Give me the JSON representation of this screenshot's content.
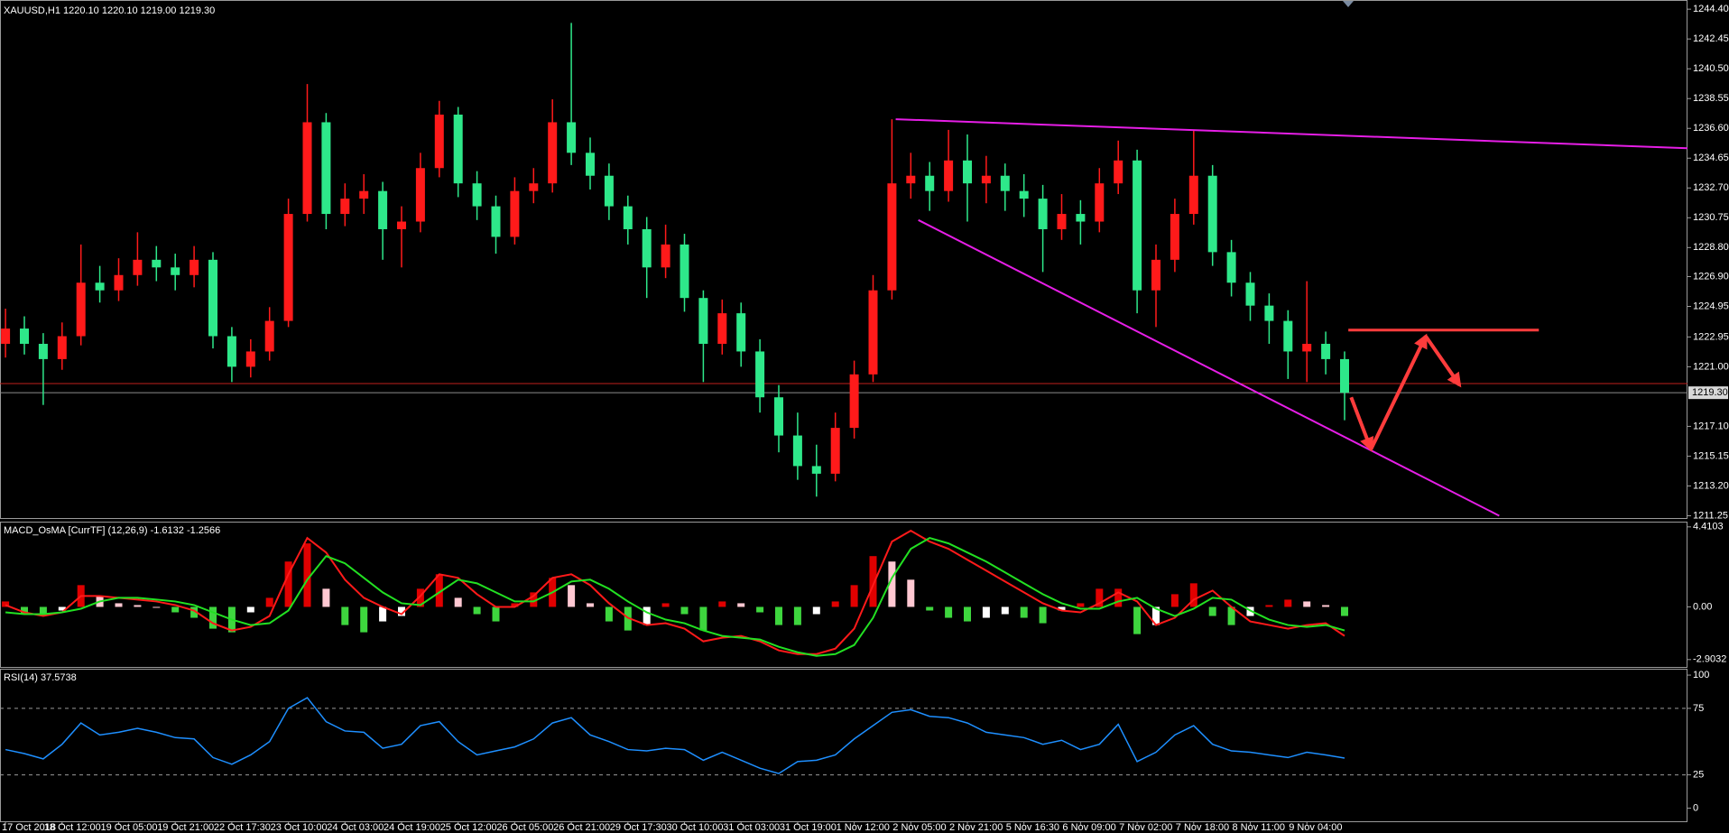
{
  "chart_data": [
    {
      "type": "candlestick",
      "title": "XAUUSD,H1  1220.10 1220.10 1219.00 1219.30",
      "categories": [
        "17 Oct 2018",
        null,
        null,
        "18 Oct 12:00",
        null,
        null,
        "19 Oct 05:00",
        null,
        null,
        "19 Oct 21:00",
        null,
        null,
        "22 Oct 17:30",
        null,
        null,
        "23 Oct 10:00",
        null,
        null,
        "24 Oct 03:00",
        null,
        null,
        "24 Oct 19:00",
        null,
        null,
        "25 Oct 12:00",
        null,
        null,
        "26 Oct 05:00",
        null,
        null,
        "26 Oct 21:00",
        null,
        null,
        "29 Oct 17:30",
        null,
        null,
        "30 Oct 10:00",
        null,
        null,
        "31 Oct 03:00",
        null,
        null,
        "31 Oct 19:00",
        null,
        null,
        "1 Nov 12:00",
        null,
        null,
        "2 Nov 05:00",
        null,
        null,
        "2 Nov 21:00",
        null,
        null,
        "5 Nov 16:30",
        null,
        null,
        "6 Nov 09:00",
        null,
        null,
        "7 Nov 02:00",
        null,
        null,
        "7 Nov 18:00",
        null,
        null,
        "8 Nov 11:00",
        null,
        null,
        "9 Nov 04:00",
        null,
        null
      ],
      "open": [
        1222.5,
        1223.5,
        1222.5,
        1221.5,
        1223.0,
        1226.5,
        1226.0,
        1227.0,
        1228.0,
        1227.5,
        1227.0,
        1228.0,
        1223.0,
        1221.0,
        1222.0,
        1224.0,
        1231.0,
        1237.0,
        1231.0,
        1232.0,
        1232.5,
        1230.0,
        1230.5,
        1234.0,
        1237.5,
        1233.0,
        1231.5,
        1229.5,
        1232.5,
        1233.0,
        1237.0,
        1235.0,
        1233.5,
        1231.5,
        1230.0,
        1227.5,
        1229.0,
        1225.5,
        1222.5,
        1224.5,
        1222.0,
        1219.0,
        1216.5,
        1214.5,
        1214.0,
        1217.0,
        1220.5,
        1226.0,
        1233.0,
        1233.5,
        1232.5,
        1234.5,
        1233.0,
        1233.5,
        1232.5,
        1232.0,
        1230.0,
        1231.0,
        1230.5,
        1233.0,
        1234.5,
        1226.0,
        1228.0,
        1231.0,
        1233.5,
        1228.5,
        1226.5,
        1225.0,
        1224.0,
        1222.0,
        1222.5,
        1221.5
      ],
      "high": [
        1224.8,
        1224.3,
        1223.2,
        1223.9,
        1229.0,
        1227.6,
        1228.1,
        1229.8,
        1228.9,
        1228.4,
        1228.9,
        1228.5,
        1223.6,
        1222.8,
        1224.9,
        1232.0,
        1239.5,
        1237.6,
        1233.0,
        1233.6,
        1233.1,
        1231.5,
        1235.0,
        1238.4,
        1238.0,
        1233.8,
        1232.2,
        1233.4,
        1234.0,
        1238.5,
        1243.5,
        1236.0,
        1234.3,
        1232.2,
        1230.8,
        1230.3,
        1229.7,
        1226.0,
        1225.4,
        1225.2,
        1222.8,
        1219.8,
        1218.0,
        1215.9,
        1218.0,
        1221.4,
        1227.0,
        1237.2,
        1235.0,
        1234.4,
        1236.5,
        1236.2,
        1234.8,
        1234.3,
        1233.6,
        1232.9,
        1232.3,
        1231.9,
        1234.0,
        1235.8,
        1235.2,
        1229.0,
        1232.0,
        1236.5,
        1234.2,
        1229.3,
        1227.2,
        1225.8,
        1224.7,
        1226.6,
        1223.3,
        1222.0
      ],
      "low": [
        1221.6,
        1221.8,
        1218.5,
        1220.8,
        1222.4,
        1225.2,
        1225.3,
        1226.3,
        1226.6,
        1226.0,
        1226.2,
        1222.2,
        1220.0,
        1220.3,
        1221.4,
        1223.6,
        1230.5,
        1230.0,
        1230.2,
        1231.0,
        1228.0,
        1227.5,
        1229.8,
        1233.4,
        1232.1,
        1230.6,
        1228.4,
        1229.0,
        1231.7,
        1232.4,
        1234.2,
        1232.6,
        1230.6,
        1229.0,
        1225.5,
        1226.8,
        1224.6,
        1220.0,
        1221.8,
        1221.0,
        1218.0,
        1215.4,
        1213.6,
        1212.5,
        1213.5,
        1216.3,
        1220.0,
        1225.4,
        1232.0,
        1231.2,
        1231.8,
        1230.5,
        1231.7,
        1231.2,
        1230.8,
        1227.2,
        1229.3,
        1229.0,
        1229.8,
        1232.3,
        1224.5,
        1223.6,
        1227.2,
        1230.3,
        1227.6,
        1225.6,
        1224.0,
        1222.5,
        1220.2,
        1220.0,
        1220.5,
        1217.5
      ],
      "close": [
        1223.5,
        1222.5,
        1221.5,
        1223.0,
        1226.5,
        1226.0,
        1227.0,
        1228.0,
        1227.5,
        1227.0,
        1228.0,
        1223.0,
        1221.0,
        1222.0,
        1224.0,
        1231.0,
        1237.0,
        1231.0,
        1232.0,
        1232.5,
        1230.0,
        1230.5,
        1234.0,
        1237.5,
        1233.0,
        1231.5,
        1229.5,
        1232.5,
        1233.0,
        1237.0,
        1235.0,
        1233.5,
        1231.5,
        1230.0,
        1227.5,
        1229.0,
        1225.5,
        1222.5,
        1224.5,
        1222.0,
        1219.0,
        1216.5,
        1214.5,
        1214.0,
        1217.0,
        1220.5,
        1226.0,
        1233.0,
        1233.5,
        1232.5,
        1234.5,
        1233.0,
        1233.5,
        1232.5,
        1232.0,
        1230.0,
        1231.0,
        1230.5,
        1233.0,
        1234.5,
        1226.0,
        1228.0,
        1231.0,
        1233.5,
        1228.5,
        1226.5,
        1225.0,
        1224.0,
        1222.0,
        1222.5,
        1221.5,
        1219.3
      ],
      "up_color": "#ff1a1a",
      "down_color": "#2ee88a",
      "ylim": [
        1211.1,
        1245.0
      ],
      "yticks": [
        {
          "value": 1244.4,
          "label": "1244.40"
        },
        1242.45,
        {
          "value": 1240.5,
          "label": "1240.50"
        },
        1238.55,
        {
          "value": 1236.6,
          "label": "1236.60"
        },
        1234.65,
        {
          "value": 1232.7,
          "label": "1232.70"
        },
        1230.75,
        {
          "value": 1228.8,
          "label": "1228.80"
        },
        {
          "value": 1226.9,
          "label": "1226.90"
        },
        1224.95,
        1222.95,
        {
          "value": 1221.0,
          "label": "1221.00"
        },
        {
          "value": 1217.1,
          "label": "1217.10"
        },
        1215.15,
        {
          "value": 1213.2,
          "label": "1213.20"
        },
        1211.25
      ],
      "bid": {
        "value": 1219.3,
        "label": "1219.30"
      },
      "bid_color": "#8c8c8c",
      "level": 1219.9,
      "level_color": "#c0201c",
      "lines": [
        {
          "color": "#e61ee6",
          "x": [
            47.2,
            89.2
          ],
          "y": [
            1237.2,
            1235.3
          ]
        },
        {
          "color": "#e61ee6",
          "x": [
            48.4,
            79.2
          ],
          "y": [
            1230.6,
            1211.25
          ]
        },
        {
          "color": "#ff3c3c",
          "x": [
            71.2,
            81.3
          ],
          "y": [
            1223.4,
            1223.4
          ]
        }
      ],
      "forecast": {
        "color": "#ff3c3c",
        "x": [
          71.35,
          72.4,
          75.3,
          77.1
        ],
        "y": [
          1219.0,
          1215.6,
          1223.0,
          1219.8
        ]
      }
    },
    {
      "type": "macd",
      "title": "MACD_OsMA [CurrTF] (12,26,9) -1.6132 -1.2566",
      "values": [
        0.3,
        -0.4,
        -0.5,
        -0.2,
        1.2,
        0.6,
        0.2,
        0.1,
        0.0,
        -0.3,
        -0.6,
        -1.2,
        -1.4,
        -0.3,
        0.5,
        2.5,
        3.5,
        1.0,
        -1.0,
        -1.4,
        -0.8,
        -0.5,
        1.0,
        1.8,
        0.5,
        -0.4,
        -0.8,
        0.2,
        0.8,
        1.6,
        1.2,
        0.2,
        -0.8,
        -1.3,
        -1.0,
        0.2,
        -0.4,
        -1.3,
        0.3,
        0.2,
        -0.3,
        -1.0,
        -1.0,
        -0.4,
        0.3,
        1.2,
        2.8,
        2.5,
        1.5,
        -0.2,
        -0.6,
        -0.8,
        -0.6,
        -0.4,
        -0.6,
        -0.9,
        -0.2,
        0.2,
        1.0,
        1.0,
        -1.5,
        -1.0,
        0.7,
        1.3,
        -0.5,
        -1.0,
        -0.5,
        0.1,
        0.4,
        0.3,
        0.1,
        -0.5
      ],
      "colors": {
        "positive": "#e00000",
        "positive_falling": "#ffc8d2",
        "negative": "#3ed63e",
        "negative_rising": "#ffffff"
      },
      "series": [
        {
          "color": "#ff1a1a",
          "values": [
            0.1,
            -0.3,
            -0.5,
            -0.3,
            0.6,
            0.6,
            0.5,
            0.4,
            0.3,
            0.1,
            -0.2,
            -0.9,
            -1.3,
            -1.1,
            -0.5,
            1.8,
            3.8,
            3.0,
            1.5,
            0.5,
            0.0,
            -0.4,
            0.6,
            1.8,
            1.6,
            0.7,
            0.0,
            0.0,
            0.6,
            1.6,
            1.8,
            1.2,
            0.2,
            -0.6,
            -1.0,
            -0.9,
            -1.2,
            -1.9,
            -1.7,
            -1.6,
            -1.9,
            -2.4,
            -2.6,
            -2.6,
            -2.3,
            -1.2,
            1.2,
            3.6,
            4.2,
            3.6,
            3.2,
            2.6,
            2.0,
            1.4,
            0.8,
            0.2,
            -0.2,
            -0.3,
            0.2,
            0.8,
            0.3,
            -1.0,
            -0.6,
            0.4,
            0.9,
            0.0,
            -0.8,
            -1.0,
            -1.2,
            -1.0,
            -0.9,
            -1.6
          ]
        },
        {
          "color": "#22e022",
          "values": [
            -0.3,
            -0.4,
            -0.4,
            -0.3,
            -0.1,
            0.3,
            0.5,
            0.5,
            0.4,
            0.3,
            0.1,
            -0.3,
            -0.7,
            -1.0,
            -0.9,
            -0.2,
            1.5,
            2.8,
            2.4,
            1.6,
            0.8,
            0.2,
            0.1,
            0.8,
            1.5,
            1.3,
            0.8,
            0.3,
            0.3,
            0.8,
            1.4,
            1.5,
            1.0,
            0.3,
            -0.3,
            -0.7,
            -0.9,
            -1.3,
            -1.6,
            -1.7,
            -1.8,
            -2.2,
            -2.5,
            -2.7,
            -2.6,
            -2.1,
            -0.6,
            1.6,
            3.2,
            3.8,
            3.5,
            3.0,
            2.5,
            1.9,
            1.3,
            0.7,
            0.2,
            -0.1,
            -0.1,
            0.3,
            0.5,
            -0.1,
            -0.5,
            -0.1,
            0.5,
            0.4,
            -0.2,
            -0.7,
            -1.0,
            -1.1,
            -1.0,
            -1.3
          ]
        }
      ],
      "ylim": [
        -3.31,
        4.65
      ],
      "yticks": [
        4.4103,
        {
          "value": 0,
          "label": "0.00"
        },
        -2.9032
      ]
    },
    {
      "type": "line",
      "title": "RSI(14) 37.5738",
      "color": "#1e8fff",
      "values": [
        44,
        41,
        37,
        48,
        64,
        55,
        57,
        60,
        57,
        53,
        52,
        38,
        33,
        40,
        50,
        75,
        83,
        65,
        58,
        57,
        45,
        48,
        62,
        65,
        50,
        40,
        43,
        46,
        52,
        64,
        68,
        55,
        50,
        44,
        43,
        45,
        44,
        36,
        42,
        36,
        30,
        26,
        35,
        36,
        40,
        52,
        62,
        72,
        74,
        69,
        68,
        64,
        57,
        55,
        53,
        48,
        51,
        44,
        48,
        63,
        35,
        42,
        55,
        62,
        48,
        43,
        42,
        40,
        38,
        42,
        40,
        37.57
      ],
      "ylim": [
        -9.9,
        104.1
      ],
      "yticks": [
        0,
        25,
        75,
        100
      ],
      "levels": [
        25,
        75
      ]
    }
  ]
}
